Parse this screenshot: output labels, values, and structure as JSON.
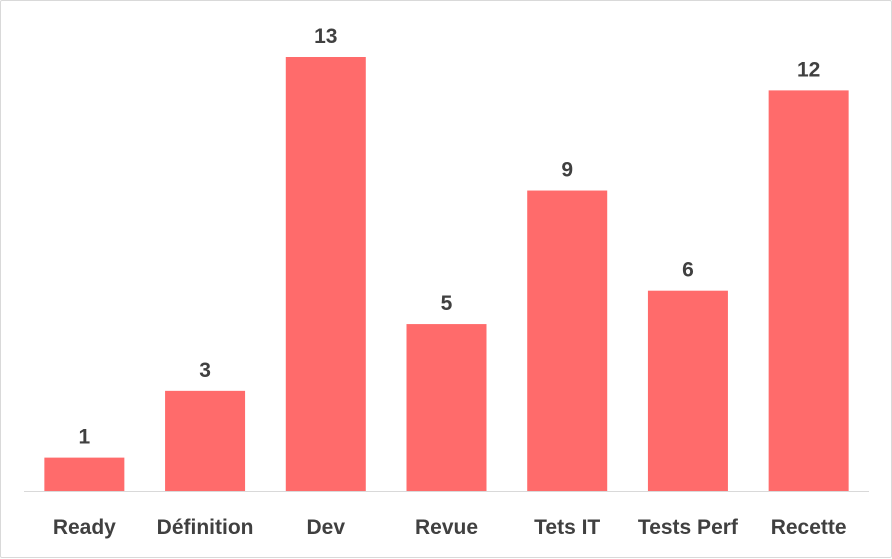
{
  "chart_data": {
    "type": "bar",
    "title": "",
    "xlabel": "",
    "ylabel": "",
    "categories": [
      "Ready",
      "Définition",
      "Dev",
      "Revue",
      "Tets IT",
      "Tests Perf",
      "Recette"
    ],
    "values": [
      1,
      3,
      13,
      5,
      9,
      6,
      12
    ],
    "ylim": [
      0,
      13
    ],
    "grid": false,
    "legend": "none",
    "data_labels": true,
    "bar_color": "#ff6b6b",
    "axis_color": "#d9d9d9",
    "text_color": "#404040"
  }
}
